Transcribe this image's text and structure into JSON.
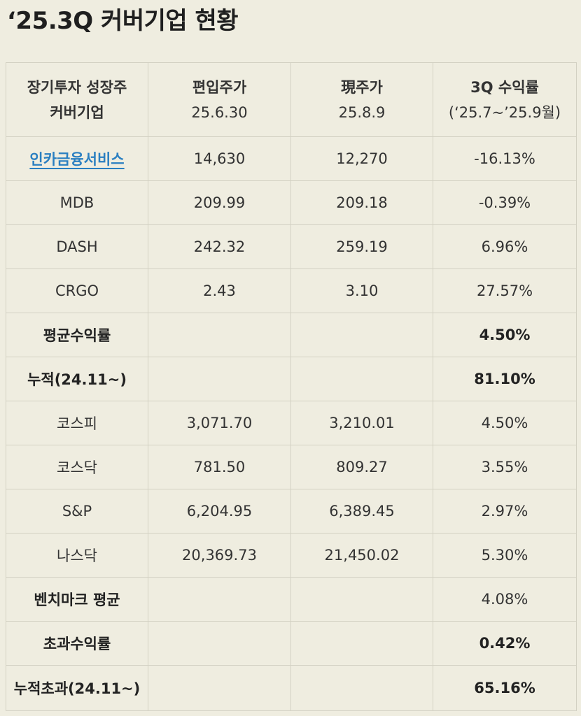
{
  "title": "‘25.3Q 커버기업 현황",
  "header": [
    {
      "line1": "장기투자 성장주",
      "line2": "커버기업"
    },
    {
      "line1": "편입주가",
      "line2": "25.6.30"
    },
    {
      "line1": "現주가",
      "line2": "25.8.9"
    },
    {
      "line1": "3Q 수익률",
      "line2": "(‘25.7~’25.9월)"
    }
  ],
  "rows": [
    {
      "name": "인카금융서비스",
      "buy": "14,630",
      "now": "12,270",
      "ret": "-16.13%"
    },
    {
      "name": "MDB",
      "buy": "209.99",
      "now": "209.18",
      "ret": "-0.39%"
    },
    {
      "name": "DASH",
      "buy": "242.32",
      "now": "259.19",
      "ret": "6.96%"
    },
    {
      "name": "CRGO",
      "buy": "2.43",
      "now": "3.10",
      "ret": "27.57%"
    },
    {
      "name": "평균수익률",
      "buy": "",
      "now": "",
      "ret": "4.50%"
    },
    {
      "name": "누적(24.11~)",
      "buy": "",
      "now": "",
      "ret": "81.10%"
    },
    {
      "name": "코스피",
      "buy": "3,071.70",
      "now": "3,210.01",
      "ret": "4.50%"
    },
    {
      "name": "코스닥",
      "buy": "781.50",
      "now": "809.27",
      "ret": "3.55%"
    },
    {
      "name": "S&P",
      "buy": "6,204.95",
      "now": "6,389.45",
      "ret": "2.97%"
    },
    {
      "name": "나스닥",
      "buy": "20,369.73",
      "now": "21,450.02",
      "ret": "5.30%"
    },
    {
      "name": "벤치마크 평균",
      "buy": "",
      "now": "",
      "ret": "4.08%"
    },
    {
      "name": "초과수익률",
      "buy": "",
      "now": "",
      "ret": "0.42%"
    },
    {
      "name": "누적초과(24.11~)",
      "buy": "",
      "now": "",
      "ret": "65.16%"
    }
  ],
  "colors": {
    "background": "#efede0",
    "link": "#2a7fc1",
    "border": "#d3d1c3"
  }
}
